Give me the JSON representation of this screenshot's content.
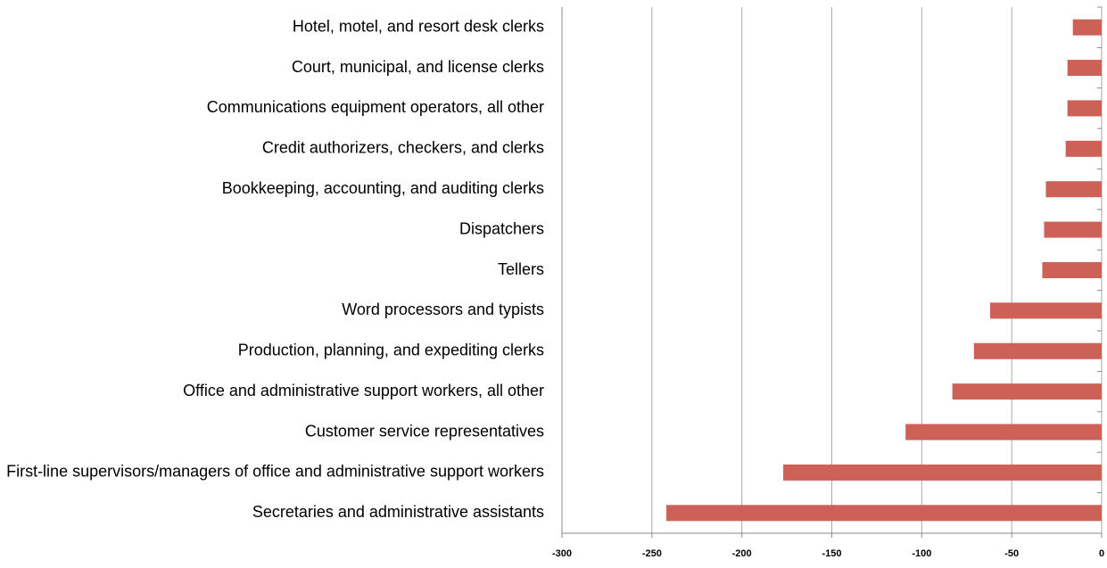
{
  "chart_data": {
    "type": "bar",
    "orientation": "horizontal",
    "categories": [
      "Hotel, motel, and resort desk clerks",
      "Court, municipal, and license clerks",
      "Communications equipment operators, all other",
      "Credit authorizers, checkers, and clerks",
      "Bookkeeping, accounting, and auditing clerks",
      "Dispatchers",
      "Tellers",
      "Word processors and typists",
      "Production, planning, and expediting clerks",
      "Office and administrative support workers, all other",
      "Customer service representatives",
      "First-line supervisors/managers of office and administrative support workers",
      "Secretaries and administrative assistants"
    ],
    "values": [
      -16,
      -19,
      -19,
      -20,
      -31,
      -32,
      -33,
      -62,
      -71,
      -83,
      -109,
      -177,
      -242
    ],
    "color": "#cd6158",
    "xlim": [
      -300,
      0
    ],
    "xticks": [
      -300,
      -250,
      -200,
      -150,
      -100,
      -50,
      0
    ],
    "grid": true
  }
}
